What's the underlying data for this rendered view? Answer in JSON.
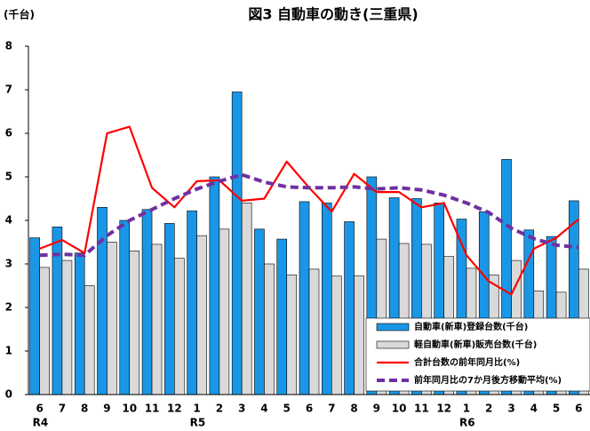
{
  "chart_data": {
    "type": "bar",
    "title": "図3 自動車の動き(三重県)",
    "y_label": "(千台)",
    "categories": [
      "6",
      "7",
      "8",
      "9",
      "10",
      "11",
      "12",
      "1",
      "2",
      "3",
      "4",
      "5",
      "6",
      "7",
      "8",
      "9",
      "10",
      "11",
      "12",
      "1",
      "2",
      "3",
      "4",
      "5",
      "6"
    ],
    "year_labels": [
      "R4",
      null,
      null,
      null,
      null,
      null,
      null,
      "R5",
      null,
      null,
      null,
      null,
      null,
      null,
      null,
      null,
      null,
      null,
      null,
      "R6",
      null,
      null,
      null,
      null,
      null
    ],
    "ylim": [
      0,
      8
    ],
    "yticks": [
      0,
      1,
      2,
      3,
      4,
      5,
      6,
      7,
      8
    ],
    "grid": false,
    "series": [
      {
        "name": "自動車(新車)登録台数(千台)",
        "type": "bar",
        "color": "#1a96e6",
        "values": [
          3.6,
          3.85,
          3.25,
          4.3,
          4.0,
          4.25,
          3.93,
          4.22,
          5.0,
          6.95,
          3.8,
          3.57,
          4.43,
          4.4,
          3.97,
          5.0,
          4.52,
          4.5,
          4.4,
          4.03,
          4.2,
          5.4,
          3.78,
          3.63,
          4.45
        ]
      },
      {
        "name": "軽自動車(新車)販売台数(千台)",
        "type": "bar",
        "color": "#d9d9d9",
        "values": [
          2.92,
          3.08,
          2.5,
          3.5,
          3.3,
          3.45,
          3.13,
          3.65,
          3.8,
          4.4,
          3.0,
          2.75,
          2.88,
          2.72,
          2.73,
          3.57,
          3.47,
          3.45,
          3.17,
          2.9,
          2.75,
          3.08,
          2.38,
          2.35,
          2.88
        ]
      },
      {
        "name": "合計台数の前年同月比(%)",
        "type": "line",
        "color": "#ff0000",
        "dashed": false,
        "values": [
          3.35,
          3.55,
          3.25,
          6.0,
          6.15,
          4.75,
          4.3,
          4.9,
          4.92,
          4.45,
          4.5,
          5.35,
          4.75,
          4.2,
          5.07,
          4.65,
          4.65,
          4.3,
          4.4,
          3.2,
          2.6,
          2.3,
          3.35,
          3.6,
          4.03
        ]
      },
      {
        "name": "前年同月比の7か月後方移動平均(%)",
        "type": "line",
        "color": "#7030a0",
        "dashed": true,
        "values": [
          3.2,
          3.22,
          3.2,
          3.65,
          4.0,
          4.25,
          4.5,
          4.72,
          4.9,
          5.05,
          4.88,
          4.77,
          4.75,
          4.75,
          4.77,
          4.72,
          4.75,
          4.7,
          4.58,
          4.4,
          4.18,
          3.82,
          3.58,
          3.43,
          3.38
        ]
      }
    ]
  }
}
